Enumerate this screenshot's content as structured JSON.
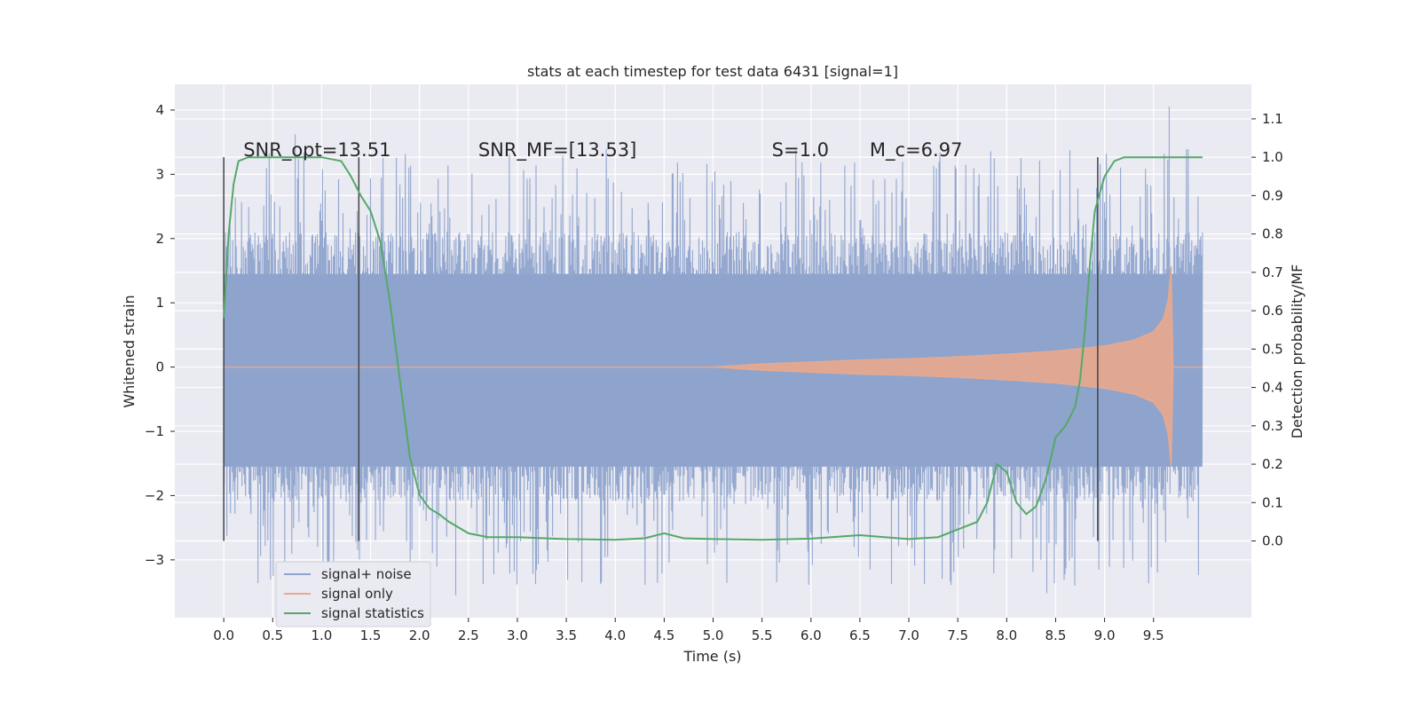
{
  "chart_data": {
    "type": "line",
    "title": "stats at each timestep for test data 6431 [signal=1]",
    "xlabel": "Time (s)",
    "ylabel": "Whitened strain",
    "ylabel_right": "Detection probability/MF",
    "xlim": [
      -0.5,
      10.5
    ],
    "ylim": [
      -3.9,
      4.4
    ],
    "ylim_right": [
      -0.2,
      1.19
    ],
    "x_ticks": [
      "0.0",
      "0.5",
      "1.0",
      "1.5",
      "2.0",
      "2.5",
      "3.0",
      "3.5",
      "4.0",
      "4.5",
      "5.0",
      "5.5",
      "6.0",
      "6.5",
      "7.0",
      "7.5",
      "8.0",
      "8.5",
      "9.0",
      "9.5"
    ],
    "y_ticks": [
      "4",
      "3",
      "2",
      "1",
      "0",
      "−1",
      "−2",
      "−3"
    ],
    "y_ticks_right": [
      "1.1",
      "1.0",
      "0.9",
      "0.8",
      "0.7",
      "0.6",
      "0.5",
      "0.4",
      "0.3",
      "0.2",
      "0.1",
      "0.0"
    ],
    "grid": true,
    "legend_placement": "lower-left",
    "series": [
      {
        "name": "signal+ noise",
        "color": "#8fa4cd",
        "x_range": [
          0.0,
          10.0
        ],
        "band": [
          -1.55,
          1.45
        ],
        "envelope": [
          2.0,
          3.4
        ],
        "peaks": [
          {
            "x": 9.66,
            "y": 4.05
          },
          {
            "x": 0.73,
            "y": 3.62
          },
          {
            "x": 8.41,
            "y": -3.52
          },
          {
            "x": 2.37,
            "y": -3.55
          },
          {
            "x": 3.85,
            "y": -3.38
          }
        ]
      },
      {
        "name": "signal only",
        "color": "#e9a98d",
        "x": [
          0.0,
          5.0,
          5.5,
          6.0,
          6.5,
          7.0,
          7.5,
          8.0,
          8.5,
          9.0,
          9.3,
          9.5,
          9.6,
          9.65,
          9.68,
          9.7,
          10.0
        ],
        "amplitude": [
          0.0,
          0.0,
          0.05,
          0.08,
          0.11,
          0.13,
          0.16,
          0.2,
          0.25,
          0.33,
          0.42,
          0.55,
          0.75,
          1.05,
          1.55,
          0.0,
          0.0
        ]
      },
      {
        "name": "signal statistics",
        "color": "#55a868",
        "axis": "right",
        "x": [
          0.0,
          0.05,
          0.1,
          0.15,
          0.25,
          0.4,
          0.6,
          0.8,
          1.0,
          1.2,
          1.3,
          1.4,
          1.5,
          1.6,
          1.7,
          1.8,
          1.9,
          2.0,
          2.1,
          2.2,
          2.3,
          2.5,
          2.7,
          3.0,
          3.5,
          4.0,
          4.3,
          4.5,
          4.7,
          5.0,
          5.5,
          6.0,
          6.5,
          7.0,
          7.3,
          7.5,
          7.7,
          7.8,
          7.9,
          8.0,
          8.1,
          8.2,
          8.3,
          8.4,
          8.5,
          8.6,
          8.7,
          8.75,
          8.8,
          8.85,
          8.9,
          9.0,
          9.1,
          9.2,
          9.3,
          9.5,
          10.0
        ],
        "values": [
          0.58,
          0.8,
          0.93,
          0.99,
          1.0,
          1.0,
          1.0,
          1.0,
          1.0,
          0.99,
          0.95,
          0.9,
          0.86,
          0.78,
          0.62,
          0.42,
          0.22,
          0.12,
          0.085,
          0.07,
          0.05,
          0.02,
          0.01,
          0.01,
          0.005,
          0.003,
          0.007,
          0.02,
          0.007,
          0.005,
          0.003,
          0.006,
          0.015,
          0.005,
          0.01,
          0.03,
          0.05,
          0.1,
          0.2,
          0.18,
          0.1,
          0.07,
          0.09,
          0.16,
          0.27,
          0.3,
          0.35,
          0.42,
          0.55,
          0.72,
          0.86,
          0.95,
          0.99,
          1.0,
          1.0,
          1.0,
          1.0
        ]
      }
    ],
    "vlines": [
      0.0,
      1.38,
      8.93
    ],
    "annotations": [
      {
        "text": "SNR_opt=13.51",
        "x": 0.2,
        "y": 1.0
      },
      {
        "text": "SNR_MF=[13.53]",
        "x": 2.6,
        "y": 1.0
      },
      {
        "text": "S=1.0",
        "x": 5.6,
        "y": 1.0
      },
      {
        "text": "M_c=6.97",
        "x": 6.6,
        "y": 1.0
      }
    ]
  }
}
